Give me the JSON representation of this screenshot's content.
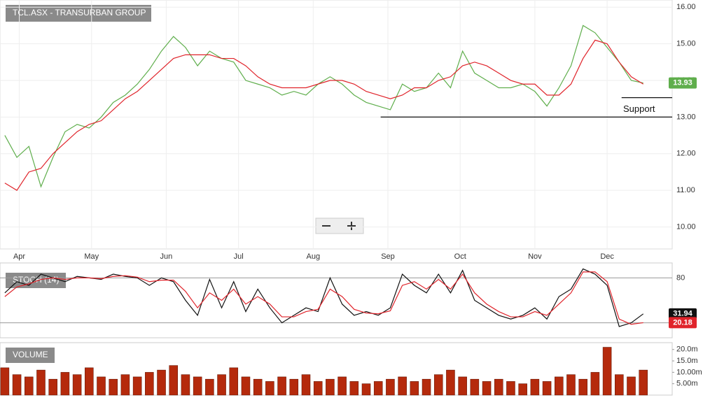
{
  "chart_data": [
    {
      "type": "line",
      "title": "TCL.ASX - TRANSURBAN GROUP",
      "x": [
        -6,
        -1,
        4,
        9,
        14,
        19,
        24,
        29,
        34,
        39,
        44,
        49,
        54,
        59,
        64,
        69,
        74,
        79,
        84,
        89,
        94,
        99,
        104,
        109,
        114,
        119,
        124,
        129,
        134,
        139,
        144,
        149,
        154,
        159,
        164,
        169,
        174,
        179,
        184,
        189,
        194,
        199,
        204,
        209,
        214,
        219,
        224,
        229,
        234,
        239,
        244,
        249,
        254,
        259
      ],
      "xlim": [
        -8,
        271
      ],
      "xticks": [
        {
          "value": 0,
          "label": "Apr"
        },
        {
          "value": 30,
          "label": "May"
        },
        {
          "value": 61,
          "label": "Jun"
        },
        {
          "value": 91,
          "label": "Jul"
        },
        {
          "value": 122,
          "label": "Aug"
        },
        {
          "value": 153,
          "label": "Sep"
        },
        {
          "value": 183,
          "label": "Oct"
        },
        {
          "value": 214,
          "label": "Nov"
        },
        {
          "value": 244,
          "label": "Dec"
        }
      ],
      "series": [
        {
          "color": "#5fae4c",
          "values": [
            12.5,
            11.9,
            12.2,
            11.1,
            11.9,
            12.6,
            12.8,
            12.7,
            13.0,
            13.4,
            13.6,
            13.9,
            14.3,
            14.8,
            15.2,
            14.9,
            14.4,
            14.8,
            14.6,
            14.5,
            14.0,
            13.9,
            13.8,
            13.6,
            13.7,
            13.6,
            13.9,
            14.1,
            13.9,
            13.6,
            13.4,
            13.3,
            13.2,
            13.9,
            13.7,
            13.8,
            14.2,
            13.8,
            14.8,
            14.2,
            14.0,
            13.8,
            13.8,
            13.9,
            13.7,
            13.3,
            13.8,
            14.4,
            15.5,
            15.3,
            14.9,
            14.5,
            14.0,
            13.93
          ],
          "value_label": "13.93"
        },
        {
          "color": "#e0242b",
          "values": [
            11.2,
            11.0,
            11.5,
            11.6,
            12.0,
            12.3,
            12.6,
            12.8,
            12.9,
            13.2,
            13.5,
            13.7,
            14.0,
            14.3,
            14.6,
            14.7,
            14.7,
            14.7,
            14.6,
            14.6,
            14.4,
            14.1,
            13.9,
            13.8,
            13.8,
            13.8,
            13.9,
            14.0,
            14.0,
            13.9,
            13.7,
            13.6,
            13.5,
            13.6,
            13.8,
            13.8,
            14.0,
            14.1,
            14.4,
            14.5,
            14.4,
            14.2,
            14.0,
            13.9,
            13.9,
            13.6,
            13.6,
            13.9,
            14.6,
            15.1,
            15.0,
            14.5,
            14.1,
            13.9
          ]
        }
      ],
      "ylim": [
        9.4,
        16.1
      ],
      "yticks": [
        {
          "value": 10,
          "label": "10.00"
        },
        {
          "value": 11,
          "label": "11.00"
        },
        {
          "value": 12,
          "label": "12.00"
        },
        {
          "value": 13,
          "label": "13.00"
        },
        {
          "value": 14,
          "label": "14.00"
        },
        {
          "value": 15,
          "label": "15.00"
        },
        {
          "value": 16,
          "label": "16.00"
        }
      ],
      "grid": true,
      "annotation": "Support",
      "support_levels": [
        {
          "value": 13.0,
          "x": [
            150,
            271
          ]
        },
        {
          "value": 13.53,
          "x": [
            250,
            271
          ]
        }
      ]
    },
    {
      "type": "line",
      "title": "STOCH (14)",
      "series": [
        {
          "color": "#111111",
          "values": [
            60,
            75,
            70,
            85,
            80,
            75,
            82,
            80,
            78,
            85,
            82,
            80,
            70,
            80,
            75,
            50,
            30,
            78,
            40,
            75,
            35,
            65,
            40,
            20,
            30,
            40,
            35,
            80,
            45,
            30,
            35,
            30,
            40,
            85,
            70,
            60,
            85,
            60,
            90,
            50,
            40,
            30,
            25,
            30,
            40,
            25,
            55,
            65,
            92,
            85,
            70,
            15,
            20,
            31.94
          ],
          "value_label": "31.94"
        },
        {
          "color": "#e0242b",
          "values": [
            55,
            68,
            72,
            78,
            80,
            78,
            80,
            80,
            79,
            82,
            83,
            81,
            75,
            77,
            77,
            62,
            40,
            60,
            50,
            65,
            45,
            55,
            45,
            28,
            28,
            35,
            38,
            65,
            55,
            38,
            33,
            32,
            36,
            70,
            75,
            65,
            78,
            65,
            85,
            60,
            45,
            35,
            28,
            28,
            35,
            30,
            45,
            60,
            88,
            88,
            75,
            25,
            18,
            20.18
          ],
          "value_label": "20.18"
        }
      ],
      "ylim": [
        0,
        100
      ],
      "yticks": [
        20,
        80
      ]
    },
    {
      "type": "bar",
      "title": "VOLUME",
      "color": "#b52a0c",
      "values": [
        12,
        9,
        8,
        11,
        7,
        10,
        9,
        12,
        8,
        7,
        9,
        8,
        10,
        11,
        13,
        9,
        8,
        7,
        9,
        12,
        8,
        7,
        6,
        8,
        7,
        9,
        6,
        7,
        8,
        6,
        5,
        6,
        7,
        8,
        6,
        7,
        9,
        11,
        8,
        7,
        6,
        7,
        6,
        5,
        7,
        6,
        8,
        9,
        7,
        10,
        21,
        9,
        8,
        11
      ],
      "ylim": [
        0,
        23
      ],
      "yticks": [
        {
          "value": 5,
          "label": "5.00m"
        },
        {
          "value": 10,
          "label": "10.00m"
        },
        {
          "value": 15,
          "label": "15.0m"
        },
        {
          "value": 20,
          "label": "20.0m"
        }
      ]
    }
  ]
}
